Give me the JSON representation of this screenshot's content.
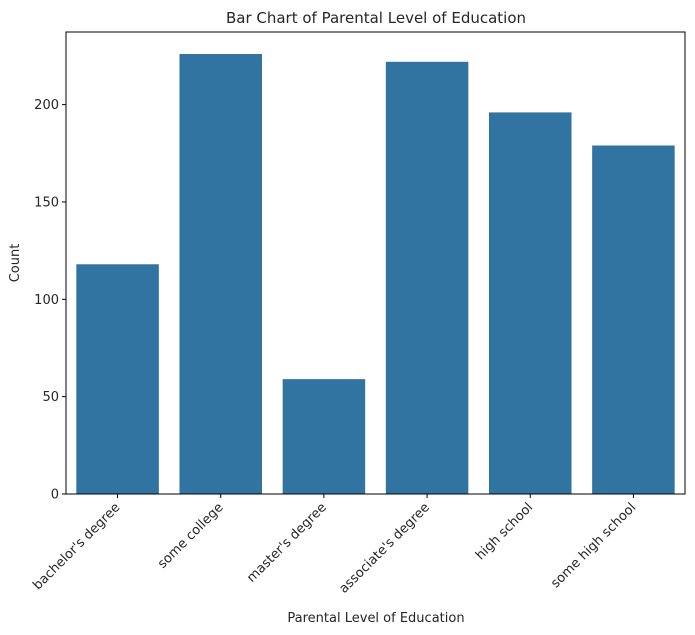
{
  "chart_data": {
    "type": "bar",
    "title": "Bar Chart of Parental Level of Education",
    "xlabel": "Parental Level of Education",
    "ylabel": "Count",
    "categories": [
      "bachelor's degree",
      "some college",
      "master's degree",
      "associate's degree",
      "high school",
      "some high school"
    ],
    "values": [
      118,
      226,
      59,
      222,
      196,
      179
    ],
    "ylim": [
      0,
      237.3
    ],
    "yticks": [
      0,
      50,
      100,
      150,
      200
    ],
    "grid": false,
    "bar_color": "#3274a1"
  }
}
